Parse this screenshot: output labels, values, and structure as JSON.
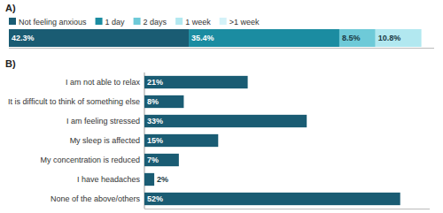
{
  "chart_data": [
    {
      "type": "bar",
      "title": "A)",
      "orientation": "horizontal",
      "stacked": true,
      "categories": [
        null
      ],
      "series": [
        {
          "name": "Not feeling anxious",
          "color": "#1a5c73",
          "values": [
            42.3
          ],
          "value_labels": [
            "42.3%"
          ]
        },
        {
          "name": "1 day",
          "color": "#1b8ca1",
          "values": [
            35.4
          ],
          "value_labels": [
            "35.4%"
          ]
        },
        {
          "name": "2 days",
          "color": "#6ecad8",
          "values": [
            8.5
          ],
          "value_labels": [
            "8.5%"
          ]
        },
        {
          "name": "1 week",
          "color": "#b2e8f0",
          "values": [
            10.8
          ],
          "value_labels": [
            "10.8%"
          ]
        },
        {
          "name": ">1 week",
          "color": "#d4f2f8",
          "values": [
            null
          ]
        }
      ],
      "xlim": [
        0,
        100
      ],
      "data_labels": true,
      "tick_labels": false,
      "legend": "upper left"
    },
    {
      "type": "bar",
      "title": "B)",
      "orientation": "horizontal",
      "categories": [
        "I am not able to relax",
        "It is difficult to think of something else",
        "I am feeling stressed",
        "My sleep is affected",
        "My concentration is reduced",
        "I have headaches",
        "None of the above/others"
      ],
      "values": [
        21,
        8,
        33,
        15,
        7,
        2,
        52
      ],
      "value_labels": [
        "21%",
        "8%",
        "33%",
        "15%",
        "7%",
        "2%",
        "52%"
      ],
      "color": "#1a5c73",
      "xlim": [
        0,
        58
      ],
      "data_labels": true,
      "tick_labels": "y"
    }
  ]
}
